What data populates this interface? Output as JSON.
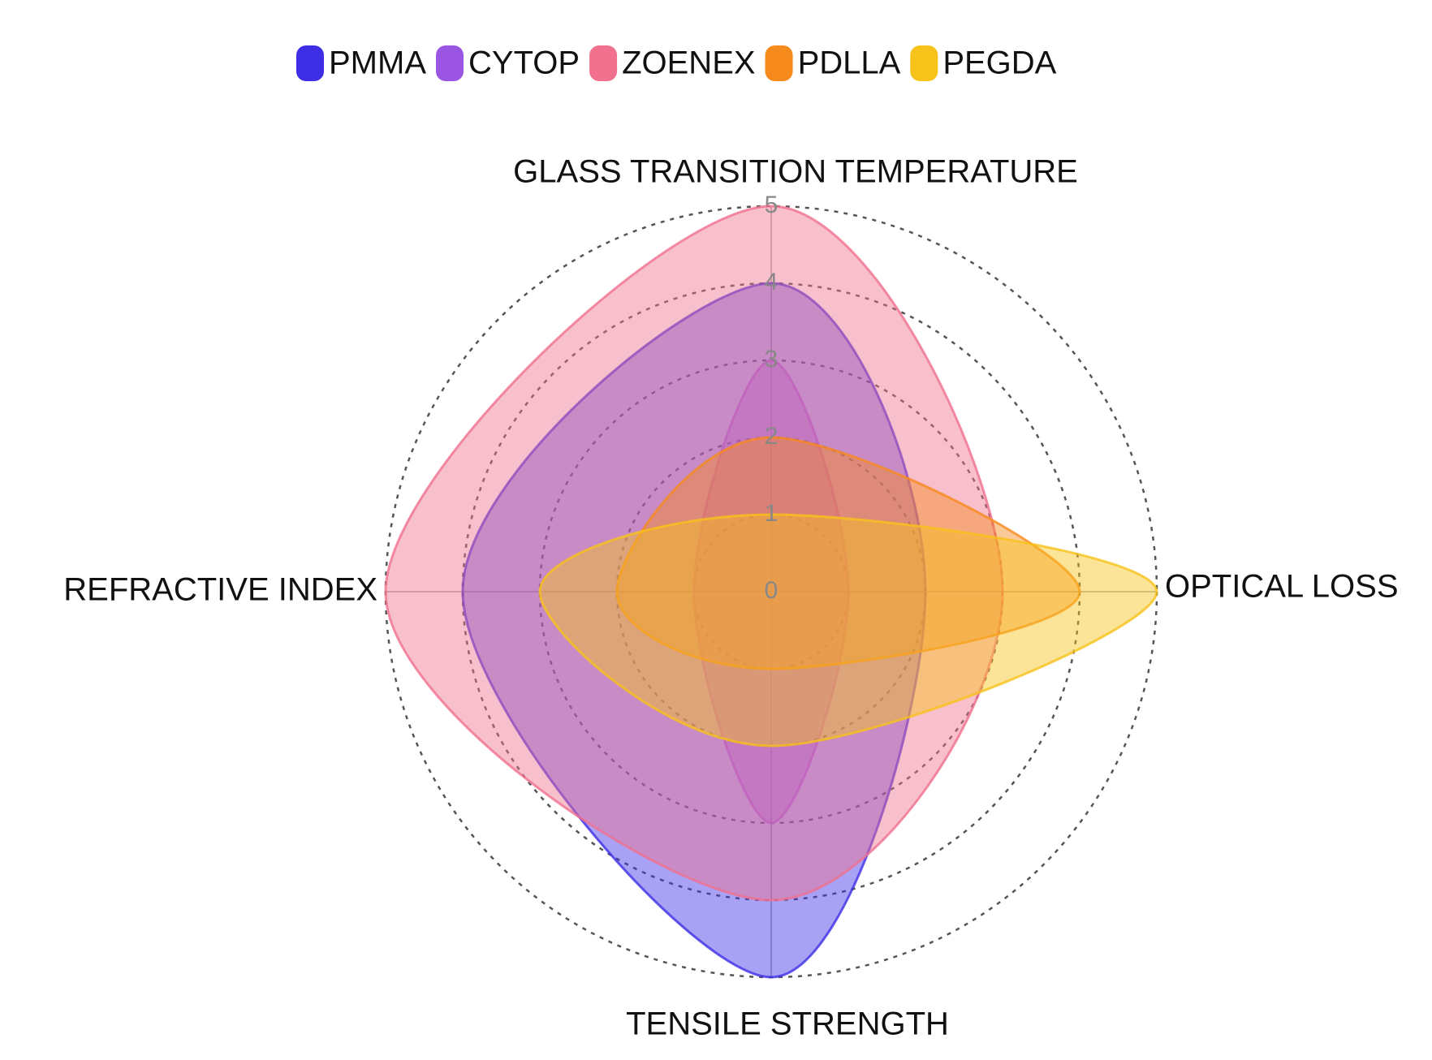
{
  "chart_data": {
    "type": "radar",
    "axes": [
      "GLASS TRANSITION TEMPERATURE",
      "OPTICAL LOSS",
      "TENSILE STRENGTH",
      "REFRACTIVE INDEX"
    ],
    "rlim": [
      0,
      5
    ],
    "rticks": [
      0,
      1,
      2,
      3,
      4,
      5
    ],
    "series": [
      {
        "name": "PMMA",
        "color": "#3d2ee6",
        "values": [
          4,
          2,
          5,
          4
        ]
      },
      {
        "name": "CYTOP",
        "color": "#9a55e3",
        "values": [
          3,
          1,
          3,
          1
        ]
      },
      {
        "name": "ZOENEX",
        "color": "#f0708e",
        "values": [
          5,
          3,
          4,
          5
        ]
      },
      {
        "name": "PDLLA",
        "color": "#f78a1d",
        "values": [
          2,
          4,
          1,
          2
        ]
      },
      {
        "name": "PEGDA",
        "color": "#f7c21a",
        "values": [
          1,
          5,
          2,
          3
        ]
      }
    ]
  }
}
